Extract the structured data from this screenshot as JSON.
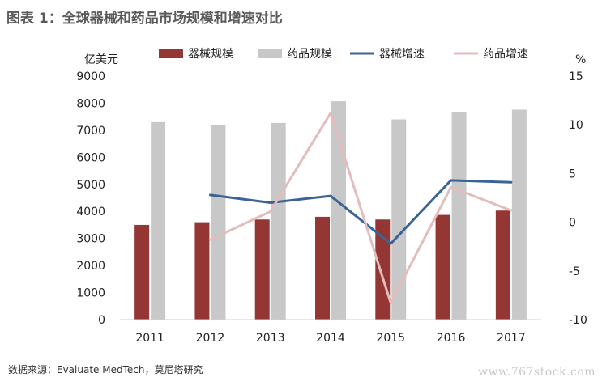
{
  "title": "图表 1：全球器械和药品市场规模和增速对比",
  "source": "数据来源：Evaluate MedTech，莫尼塔研究",
  "watermark": "www.767stock.com",
  "chart_data": {
    "type": "bar",
    "title": "",
    "y_left_label": "亿美元",
    "y_right_label": "%",
    "categories": [
      "2011",
      "2012",
      "2013",
      "2014",
      "2015",
      "2016",
      "2017"
    ],
    "y_left_ticks": [
      "0",
      "1000",
      "2000",
      "3000",
      "4000",
      "5000",
      "6000",
      "7000",
      "8000",
      "9000"
    ],
    "y_right_ticks": [
      "15",
      "10",
      "5",
      "0",
      "-5",
      "-10"
    ],
    "y_left_range": [
      0,
      9000
    ],
    "y_right_range": [
      -10,
      15
    ],
    "legend_position": "top",
    "grid": false,
    "bar_series": [
      {
        "name": "器械规模",
        "color": "#943634",
        "values": [
          3500,
          3600,
          3700,
          3800,
          3700,
          3870,
          4030
        ]
      },
      {
        "name": "药品规模",
        "color": "#c8c8c8",
        "values": [
          7300,
          7200,
          7270,
          8070,
          7400,
          7660,
          7760
        ]
      }
    ],
    "line_series": [
      {
        "name": "器械增速",
        "color": "#3a6496",
        "values": [
          null,
          2.8,
          2.0,
          2.7,
          -2.2,
          4.3,
          4.1
        ]
      },
      {
        "name": "药品增速",
        "color": "#e3bcbc",
        "values": [
          null,
          -1.8,
          1.1,
          11.2,
          -8.3,
          3.6,
          1.2
        ]
      }
    ]
  }
}
